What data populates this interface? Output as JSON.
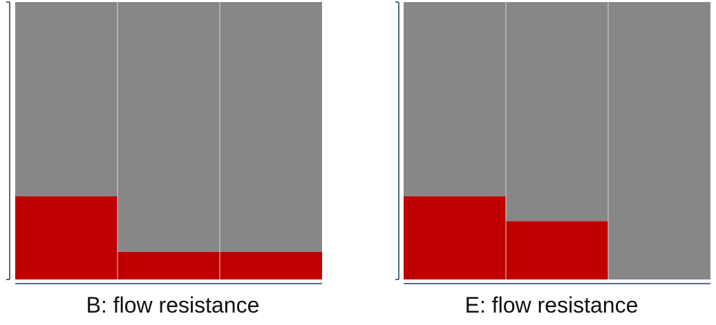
{
  "chart_data": [
    {
      "type": "bar",
      "subtype": "stacked-100-percent",
      "title": "B: flow resistance",
      "categories": [
        "",
        "",
        ""
      ],
      "series": [
        {
          "values": [
            0.3,
            0.1,
            0.1
          ]
        },
        {
          "values": [
            0.7,
            0.9,
            0.9
          ]
        }
      ],
      "ylim": [
        0,
        1
      ],
      "grid": false,
      "colors": [
        "#c00000",
        "#878787"
      ]
    },
    {
      "type": "bar",
      "subtype": "stacked-100-percent",
      "title": "E: flow resistance",
      "categories": [
        "",
        "",
        ""
      ],
      "series": [
        {
          "values": [
            0.3,
            0.21,
            0.0
          ]
        },
        {
          "values": [
            0.7,
            0.79,
            1.0
          ]
        }
      ],
      "ylim": [
        0,
        1
      ],
      "grid": false,
      "colors": [
        "#c00000",
        "#878787"
      ]
    }
  ]
}
